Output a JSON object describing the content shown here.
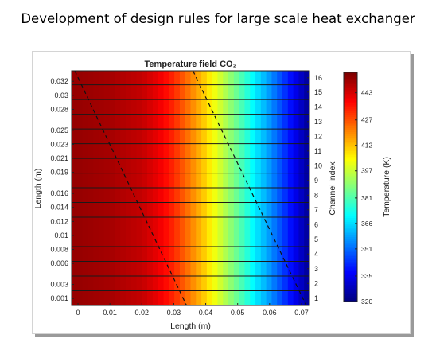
{
  "slide": {
    "title": "Development of design rules for large scale heat exchanger"
  },
  "chart_data": {
    "type": "heatmap",
    "title": "Temperature field CO₂",
    "xlabel": "Length (m)",
    "ylabel": "Length (m)",
    "y2label": "Channel index",
    "colorbar_label": "Temperature (K)",
    "xlim": [
      -0.002,
      0.0725
    ],
    "ylim": [
      0.0,
      0.0335
    ],
    "clim": [
      320,
      455
    ],
    "x_ticks": [
      0,
      0.01,
      0.02,
      0.03,
      0.04,
      0.05,
      0.06,
      0.07
    ],
    "x_tick_labels": [
      "0",
      "0.01",
      "0.02",
      "0.03",
      "0.04",
      "0.05",
      "0.06",
      "0.07"
    ],
    "y_ticks": [
      0.001,
      0.003,
      0.006,
      0.008,
      0.01,
      0.012,
      0.014,
      0.016,
      0.019,
      0.021,
      0.023,
      0.025,
      0.028,
      0.03,
      0.032
    ],
    "y_tick_labels": [
      "0.001",
      "0.003",
      "0.006",
      "0.008",
      "0.01",
      "0.012",
      "0.014",
      "0.016",
      "0.019",
      "0.021",
      "0.023",
      "0.025",
      "0.028",
      "0.03",
      "0.032"
    ],
    "channel_index_ticks": [
      1,
      2,
      3,
      4,
      5,
      6,
      7,
      8,
      9,
      10,
      11,
      12,
      13,
      14,
      15,
      16
    ],
    "colorbar_ticks": [
      320,
      335,
      351,
      366,
      381,
      397,
      412,
      427,
      443
    ],
    "temperature_profile": {
      "x": [
        -0.002,
        0.0,
        0.01,
        0.02,
        0.025,
        0.03,
        0.035,
        0.04,
        0.045,
        0.05,
        0.055,
        0.06,
        0.065,
        0.07,
        0.0725
      ],
      "temperature": [
        452,
        452,
        450,
        446,
        441,
        433,
        422,
        410,
        397,
        384,
        370,
        357,
        343,
        329,
        322
      ]
    },
    "channel_boundaries_y": [
      0.0,
      0.0021,
      0.0042,
      0.0063,
      0.0084,
      0.0105,
      0.0126,
      0.0147,
      0.0168,
      0.0189,
      0.021,
      0.0231,
      0.0252,
      0.0273,
      0.0294,
      0.0315,
      0.0335
    ],
    "dashed_lines": [
      {
        "x": [
          -0.001,
          0.034
        ],
        "y": [
          0.0335,
          0.0
        ]
      },
      {
        "x": [
          0.036,
          0.0715
        ],
        "y": [
          0.0335,
          0.0
        ]
      }
    ],
    "grid": false
  }
}
